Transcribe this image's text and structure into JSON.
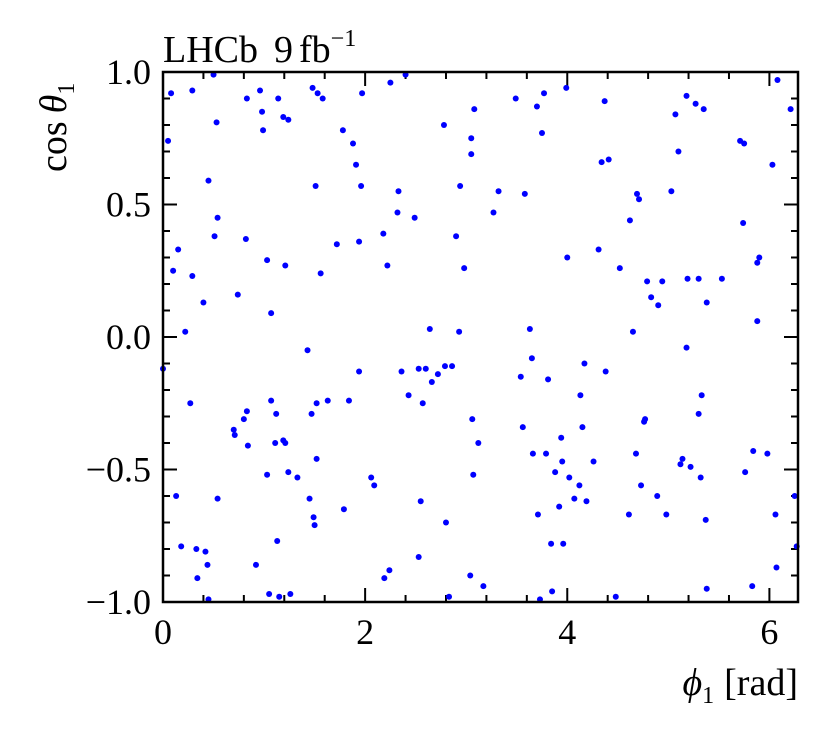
{
  "chart_data": {
    "type": "scatter",
    "experiment_label": {
      "name": "LHCb",
      "lumi_value": "9",
      "lumi_unit": "fb",
      "lumi_exponent": "−1"
    },
    "xlabel": {
      "symbol": "ϕ",
      "subscript": "1",
      "unit": "[rad]"
    },
    "ylabel": {
      "prefix": "cos",
      "symbol": "θ",
      "subscript": "1"
    },
    "xlim": [
      0,
      6.283
    ],
    "ylim": [
      -1.0,
      1.0
    ],
    "x_ticks": [
      0,
      2,
      4,
      6
    ],
    "x_tick_labels": [
      "0",
      "2",
      "4",
      "6"
    ],
    "y_ticks": [
      -1.0,
      -0.5,
      0.0,
      0.5,
      1.0
    ],
    "y_tick_labels": [
      "−1.0",
      "−0.5",
      "0.0",
      "0.5",
      "1.0"
    ],
    "grid": false,
    "series": [
      {
        "color": "#0000ff",
        "points": [
          [
            0.0,
            -0.12
          ],
          [
            0.05,
            0.74
          ],
          [
            0.08,
            0.92
          ],
          [
            0.1,
            0.25
          ],
          [
            0.13,
            -0.6
          ],
          [
            0.15,
            0.33
          ],
          [
            0.18,
            -0.79
          ],
          [
            0.22,
            0.02
          ],
          [
            0.27,
            -0.25
          ],
          [
            0.29,
            0.23
          ],
          [
            0.29,
            0.93
          ],
          [
            0.33,
            -0.8
          ],
          [
            0.34,
            -0.91
          ],
          [
            0.4,
            0.13
          ],
          [
            0.42,
            -0.81
          ],
          [
            0.44,
            -0.86
          ],
          [
            0.45,
            0.59
          ],
          [
            0.45,
            -0.99
          ],
          [
            0.5,
            0.99
          ],
          [
            0.51,
            0.38
          ],
          [
            0.53,
            0.81
          ],
          [
            0.54,
            0.45
          ],
          [
            0.54,
            -0.61
          ],
          [
            0.7,
            -0.35
          ],
          [
            0.71,
            -0.37
          ],
          [
            0.74,
            0.16
          ],
          [
            0.8,
            -0.31
          ],
          [
            0.82,
            0.37
          ],
          [
            0.83,
            0.9
          ],
          [
            0.83,
            -0.28
          ],
          [
            0.84,
            -0.41
          ],
          [
            0.92,
            -0.86
          ],
          [
            0.96,
            0.93
          ],
          [
            0.98,
            0.85
          ],
          [
            0.99,
            0.78
          ],
          [
            1.03,
            0.29
          ],
          [
            1.03,
            -0.52
          ],
          [
            1.05,
            -0.97
          ],
          [
            1.07,
            0.09
          ],
          [
            1.07,
            -0.24
          ],
          [
            1.11,
            -0.4
          ],
          [
            1.12,
            -0.29
          ],
          [
            1.13,
            -0.77
          ],
          [
            1.14,
            0.9
          ],
          [
            1.15,
            -0.98
          ],
          [
            1.19,
            0.83
          ],
          [
            1.19,
            -0.39
          ],
          [
            1.21,
            -0.4
          ],
          [
            1.21,
            0.27
          ],
          [
            1.24,
            0.82
          ],
          [
            1.24,
            -0.51
          ],
          [
            1.26,
            -0.97
          ],
          [
            1.33,
            -0.53
          ],
          [
            1.43,
            -0.05
          ],
          [
            1.45,
            -0.61
          ],
          [
            1.47,
            -0.29
          ],
          [
            1.48,
            0.94
          ],
          [
            1.49,
            -0.68
          ],
          [
            1.5,
            -0.71
          ],
          [
            1.51,
            0.57
          ],
          [
            1.52,
            -0.25
          ],
          [
            1.52,
            -0.46
          ],
          [
            1.53,
            0.92
          ],
          [
            1.56,
            0.24
          ],
          [
            1.58,
            0.9
          ],
          [
            1.63,
            -0.24
          ],
          [
            1.72,
            0.35
          ],
          [
            1.78,
            0.78
          ],
          [
            1.79,
            -0.65
          ],
          [
            1.84,
            -0.24
          ],
          [
            1.88,
            0.73
          ],
          [
            1.91,
            0.65
          ],
          [
            1.94,
            -0.13
          ],
          [
            1.94,
            0.36
          ],
          [
            1.96,
            0.57
          ],
          [
            1.97,
            0.92
          ],
          [
            2.06,
            -0.53
          ],
          [
            2.09,
            -0.56
          ],
          [
            2.18,
            0.39
          ],
          [
            2.19,
            -0.91
          ],
          [
            2.22,
            0.27
          ],
          [
            2.24,
            -0.88
          ],
          [
            2.25,
            0.96
          ],
          [
            2.32,
            0.47
          ],
          [
            2.33,
            0.55
          ],
          [
            2.36,
            -0.13
          ],
          [
            2.4,
            0.99
          ],
          [
            2.43,
            -0.22
          ],
          [
            2.49,
            0.45
          ],
          [
            2.53,
            -0.12
          ],
          [
            2.53,
            -0.83
          ],
          [
            2.55,
            -0.62
          ],
          [
            2.57,
            -0.25
          ],
          [
            2.6,
            -0.12
          ],
          [
            2.64,
            0.03
          ],
          [
            2.66,
            -0.17
          ],
          [
            2.72,
            -0.14
          ],
          [
            2.78,
            0.8
          ],
          [
            2.79,
            -0.11
          ],
          [
            2.8,
            -0.7
          ],
          [
            2.83,
            -0.98
          ],
          [
            2.86,
            -0.11
          ],
          [
            2.9,
            0.38
          ],
          [
            2.93,
            0.02
          ],
          [
            2.94,
            0.57
          ],
          [
            2.98,
            0.26
          ],
          [
            3.04,
            -0.9
          ],
          [
            3.05,
            0.75
          ],
          [
            3.05,
            0.69
          ],
          [
            3.06,
            -0.31
          ],
          [
            3.07,
            -0.52
          ],
          [
            3.08,
            0.86
          ],
          [
            3.12,
            -0.4
          ],
          [
            3.17,
            -0.94
          ],
          [
            3.27,
            0.47
          ],
          [
            3.32,
            0.55
          ],
          [
            3.49,
            0.9
          ],
          [
            3.54,
            -0.15
          ],
          [
            3.56,
            -0.34
          ],
          [
            3.58,
            0.54
          ],
          [
            3.63,
            0.03
          ],
          [
            3.65,
            -0.08
          ],
          [
            3.66,
            -0.44
          ],
          [
            3.7,
            0.87
          ],
          [
            3.71,
            -0.67
          ],
          [
            3.73,
            -0.99
          ],
          [
            3.75,
            0.77
          ],
          [
            3.77,
            0.92
          ],
          [
            3.79,
            -0.44
          ],
          [
            3.81,
            -0.16
          ],
          [
            3.84,
            -0.78
          ],
          [
            3.85,
            -0.96
          ],
          [
            3.88,
            -0.51
          ],
          [
            3.92,
            -0.64
          ],
          [
            3.94,
            -0.38
          ],
          [
            3.95,
            -0.47
          ],
          [
            3.96,
            -0.78
          ],
          [
            3.99,
            0.94
          ],
          [
            4.0,
            0.3
          ],
          [
            4.02,
            -0.53
          ],
          [
            4.07,
            -0.61
          ],
          [
            4.12,
            -0.56
          ],
          [
            4.13,
            -0.22
          ],
          [
            4.15,
            -0.34
          ],
          [
            4.17,
            -0.1
          ],
          [
            4.19,
            -0.62
          ],
          [
            4.26,
            -0.47
          ],
          [
            4.31,
            0.33
          ],
          [
            4.34,
            0.66
          ],
          [
            4.37,
            0.89
          ],
          [
            4.38,
            -0.13
          ],
          [
            4.41,
            0.67
          ],
          [
            4.48,
            -0.98
          ],
          [
            4.52,
            0.26
          ],
          [
            4.61,
            -0.67
          ],
          [
            4.62,
            0.44
          ],
          [
            4.65,
            0.02
          ],
          [
            4.68,
            -0.44
          ],
          [
            4.69,
            0.54
          ],
          [
            4.71,
            0.52
          ],
          [
            4.73,
            -0.56
          ],
          [
            4.76,
            -0.32
          ],
          [
            4.77,
            -0.31
          ],
          [
            4.79,
            0.21
          ],
          [
            4.83,
            0.15
          ],
          [
            4.89,
            -0.6
          ],
          [
            4.9,
            0.12
          ],
          [
            4.94,
            0.21
          ],
          [
            4.98,
            -0.67
          ],
          [
            5.03,
            0.55
          ],
          [
            5.07,
            0.84
          ],
          [
            5.1,
            0.7
          ],
          [
            5.12,
            -0.48
          ],
          [
            5.14,
            -0.46
          ],
          [
            5.18,
            0.91
          ],
          [
            5.18,
            -0.04
          ],
          [
            5.19,
            0.22
          ],
          [
            5.22,
            -0.49
          ],
          [
            5.27,
            0.88
          ],
          [
            5.3,
            0.22
          ],
          [
            5.3,
            -0.29
          ],
          [
            5.32,
            -0.53
          ],
          [
            5.33,
            -0.22
          ],
          [
            5.35,
            0.86
          ],
          [
            5.37,
            -0.69
          ],
          [
            5.38,
            0.13
          ],
          [
            5.38,
            -0.95
          ],
          [
            5.53,
            0.22
          ],
          [
            5.71,
            0.74
          ],
          [
            5.74,
            0.43
          ],
          [
            5.75,
            0.73
          ],
          [
            5.76,
            -0.51
          ],
          [
            5.83,
            -0.94
          ],
          [
            5.84,
            -0.43
          ],
          [
            5.88,
            0.06
          ],
          [
            5.88,
            0.28
          ],
          [
            5.9,
            0.3
          ],
          [
            5.98,
            -0.44
          ],
          [
            6.03,
            0.65
          ],
          [
            6.06,
            -0.67
          ],
          [
            6.07,
            -0.87
          ],
          [
            6.08,
            0.97
          ],
          [
            6.21,
            0.86
          ],
          [
            6.25,
            -0.6
          ],
          [
            6.27,
            -0.79
          ]
        ]
      }
    ]
  }
}
